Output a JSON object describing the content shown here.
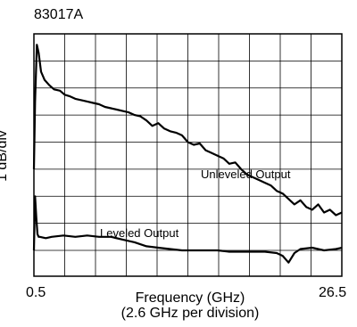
{
  "chart_data": {
    "type": "line",
    "title": "83017A",
    "xlabel": "Frequency (GHz)",
    "xlabel_sub": "(2.6 GHz per division)",
    "ylabel": "1 dB/div",
    "xlim": [
      0.5,
      26.5
    ],
    "ylim": [
      0,
      8
    ],
    "grid": true,
    "x_tick_labels": [
      "0.5",
      "26.5"
    ],
    "series": [
      {
        "name": "Unleveled Output",
        "x": [
          0.5,
          0.6,
          0.75,
          0.9,
          1.1,
          1.4,
          1.8,
          2.2,
          2.7,
          3.1,
          3.5,
          4.0,
          4.5,
          5.0,
          5.5,
          6.0,
          6.5,
          7.0,
          7.5,
          8.0,
          8.5,
          9.0,
          9.5,
          10.0,
          10.5,
          11.0,
          11.5,
          12.0,
          12.5,
          13.0,
          13.5,
          14.0,
          14.5,
          15.0,
          15.5,
          16.0,
          16.5,
          17.0,
          17.5,
          18.0,
          18.5,
          19.0,
          19.5,
          20.0,
          20.5,
          21.0,
          21.5,
          22.0,
          22.5,
          23.0,
          23.5,
          24.0,
          24.5,
          25.0,
          25.5,
          26.0,
          26.5
        ],
        "values": [
          3.0,
          5.5,
          7.6,
          7.3,
          6.6,
          6.3,
          6.1,
          5.95,
          5.9,
          5.75,
          5.7,
          5.6,
          5.55,
          5.5,
          5.45,
          5.4,
          5.3,
          5.25,
          5.2,
          5.15,
          5.1,
          5.0,
          4.95,
          4.8,
          4.6,
          4.7,
          4.5,
          4.4,
          4.35,
          4.25,
          4.0,
          3.9,
          3.95,
          3.7,
          3.6,
          3.5,
          3.4,
          3.2,
          3.25,
          3.0,
          2.8,
          2.7,
          2.6,
          2.5,
          2.4,
          2.2,
          2.1,
          1.9,
          1.7,
          1.85,
          1.6,
          1.5,
          1.7,
          1.4,
          1.5,
          1.3,
          1.4
        ]
      },
      {
        "name": "Leveled Output",
        "x": [
          0.5,
          0.6,
          0.7,
          0.8,
          0.9,
          1.0,
          1.5,
          2.0,
          3.0,
          4.0,
          5.0,
          6.0,
          7.0,
          8.0,
          9.0,
          10.0,
          11.0,
          12.0,
          13.0,
          14.0,
          15.0,
          16.0,
          17.0,
          18.0,
          19.0,
          20.0,
          21.0,
          21.5,
          22.0,
          22.5,
          23.0,
          24.0,
          25.0,
          26.0,
          26.5
        ],
        "values": [
          0.0,
          2.0,
          1.2,
          0.6,
          0.5,
          0.5,
          0.45,
          0.5,
          0.55,
          0.5,
          0.55,
          0.5,
          0.5,
          0.4,
          0.3,
          0.15,
          0.1,
          0.05,
          0.0,
          0.0,
          0.0,
          0.0,
          -0.05,
          -0.05,
          -0.05,
          -0.05,
          -0.1,
          -0.2,
          -0.45,
          -0.1,
          0.05,
          0.1,
          0.0,
          0.05,
          0.1
        ]
      }
    ]
  }
}
